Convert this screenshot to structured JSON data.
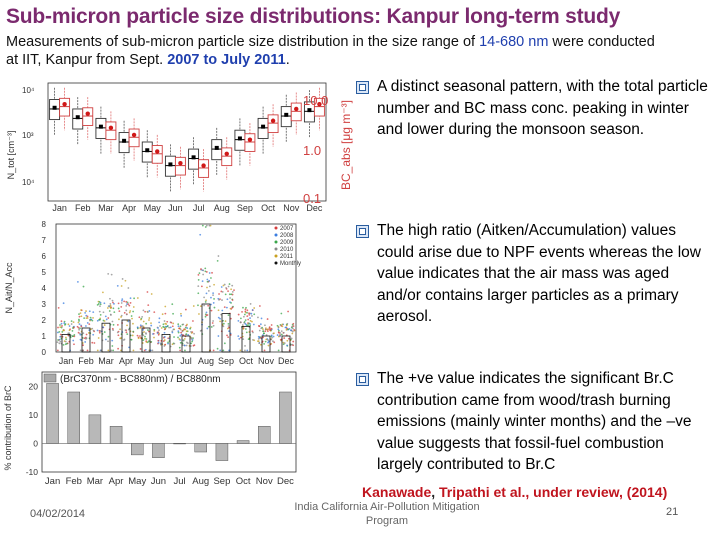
{
  "title": "Sub-micron particle size distributions: Kanpur long-term study",
  "intro": {
    "part1": "Measurements of sub-micron particle size distribution in the size range of ",
    "range": "14-680 nm",
    "part2": " were conducted",
    "line2_pre": "at IIT, Kanpur from Sept. ",
    "period": "2007 to July 2011",
    "line2_post": "."
  },
  "bullets": [
    "A distinct seasonal pattern, with the total particle number and BC mass conc. peaking in winter and lower during the monsoon season.",
    "The high ratio (Aitken/Accumulation) values could arise due to NPF events whereas the low value indicates that the air mass was aged and/or contains larger particles as a primary aerosol.",
    "The +ve value indicates the significant Br.C contribution came from wood/trash burning emissions (mainly winter months) and the –ve value suggests that fossil-fuel combustion largely contributed to Br.C"
  ],
  "citation": {
    "authors1": "Kanawade",
    "sep1": ", ",
    "authors2": "Tripathi et al., under review, (2014)"
  },
  "footer": {
    "date": "04/02/2014",
    "center": "India California Air-Pollution Mitigation Program",
    "page": "21"
  },
  "colors": {
    "title": "#7b2a6e",
    "highlight": "#1f3fae",
    "citation": "#c0141e",
    "bc_axis": "#d04040"
  },
  "months": [
    "Jan",
    "Feb",
    "Mar",
    "Apr",
    "May",
    "Jun",
    "Jul",
    "Aug",
    "Sep",
    "Oct",
    "Nov",
    "Dec"
  ],
  "chart_data": [
    {
      "type": "box",
      "ylabel": "N_tot [cm⁻³]",
      "y2label": "BC_abs [μg m⁻³]",
      "y_ticks": [
        "10⁴",
        "10³",
        "10⁴"
      ],
      "y2_ticks": [
        "10.0",
        "1.0",
        "0.1"
      ],
      "series": [
        {
          "name": "N_tot",
          "median": [
            0.78,
            0.7,
            0.62,
            0.5,
            0.42,
            0.3,
            0.36,
            0.44,
            0.52,
            0.62,
            0.72,
            0.76
          ]
        },
        {
          "name": "BC",
          "median": [
            0.8,
            0.72,
            0.6,
            0.54,
            0.4,
            0.3,
            0.28,
            0.38,
            0.5,
            0.66,
            0.76,
            0.8
          ]
        }
      ]
    },
    {
      "type": "scatter",
      "ylabel": "N_Ait/N_Acc",
      "ylim": [
        0,
        8
      ],
      "y_ticks": [
        "0",
        "1",
        "2",
        "3",
        "4",
        "5",
        "6",
        "7",
        "8"
      ],
      "legend": [
        "2007",
        "2008",
        "2009",
        "2010",
        "2011",
        "Monthly"
      ],
      "series": [
        {
          "name": "Monthly",
          "values": [
            1.1,
            1.5,
            1.8,
            2.0,
            1.5,
            1.1,
            1.0,
            3.0,
            2.4,
            1.6,
            1.0,
            1.0
          ]
        }
      ]
    },
    {
      "type": "bar",
      "title": "(BrC370nm - BC880nm) / BC880nm",
      "ylabel": "% contribution of BrC",
      "ylim": [
        -10,
        25
      ],
      "y_ticks": [
        "-10",
        "0",
        "10",
        "20"
      ],
      "values": [
        21,
        18,
        10,
        6,
        -4,
        -5,
        0,
        -3,
        -6,
        1,
        6,
        18
      ]
    }
  ]
}
